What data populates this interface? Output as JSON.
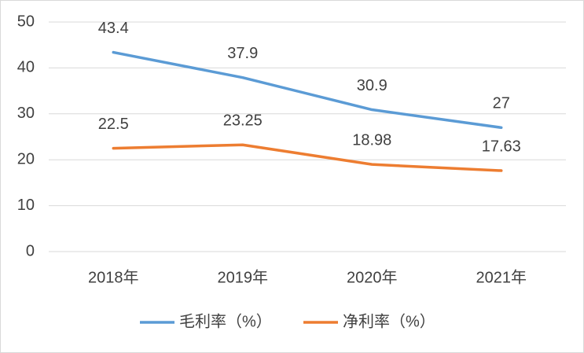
{
  "chart_data": {
    "type": "line",
    "categories": [
      "2018年",
      "2019年",
      "2020年",
      "2021年"
    ],
    "series": [
      {
        "name": "毛利率（%）",
        "color": "#5b9bd5",
        "values": [
          43.4,
          37.9,
          30.9,
          27
        ]
      },
      {
        "name": "净利率（%）",
        "color": "#ed7d31",
        "values": [
          22.5,
          23.25,
          18.98,
          17.63
        ]
      }
    ],
    "ylim": [
      0,
      50
    ],
    "yticks": [
      0,
      10,
      20,
      30,
      40,
      50
    ],
    "grid": true,
    "legend": "bottom"
  }
}
